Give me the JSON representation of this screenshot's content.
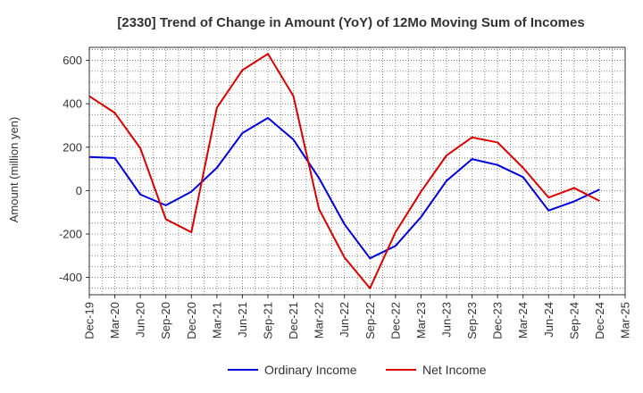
{
  "chart_data": {
    "type": "line",
    "title": "[2330]  Trend of Change in Amount (YoY) of 12Mo Moving Sum of Incomes",
    "xlabel": "",
    "ylabel": "Amount (million yen)",
    "x": [
      "Dec-19",
      "Mar-20",
      "Jun-20",
      "Sep-20",
      "Dec-20",
      "Mar-21",
      "Jun-21",
      "Sep-21",
      "Dec-21",
      "Mar-22",
      "Jun-22",
      "Sep-22",
      "Dec-22",
      "Mar-23",
      "Jun-23",
      "Sep-23",
      "Dec-23",
      "Mar-24",
      "Jun-24",
      "Sep-24",
      "Dec-24",
      "Mar-25"
    ],
    "ylim": [
      -480,
      660
    ],
    "yticks": [
      600,
      400,
      200,
      0,
      -200,
      -400
    ],
    "grid": true,
    "legend_position": "bottom",
    "series": [
      {
        "name": "Ordinary Income",
        "color": "#0000dd",
        "values": [
          155,
          150,
          -18,
          -68,
          -5,
          105,
          265,
          335,
          235,
          58,
          -155,
          -312,
          -255,
          -122,
          45,
          145,
          118,
          62,
          -92,
          -50,
          5,
          null
        ]
      },
      {
        "name": "Net Income",
        "color": "#dd0000",
        "values": [
          435,
          358,
          195,
          -132,
          -192,
          382,
          555,
          630,
          435,
          -85,
          -308,
          -450,
          -192,
          -5,
          162,
          245,
          222,
          105,
          -32,
          12,
          -48,
          null
        ]
      }
    ]
  }
}
